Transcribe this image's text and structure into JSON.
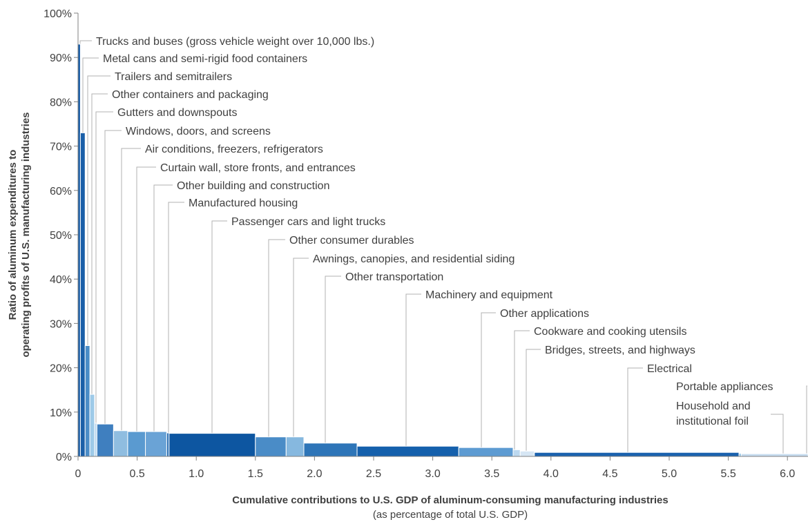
{
  "chart_data": {
    "type": "bar",
    "subtype": "variable-width (Marimekko-style) bar chart",
    "xlabel": "Cumulative contributions to U.S. GDP of aluminum-consuming manufacturing industries",
    "xlabel_sub": "(as percentage of total U.S. GDP)",
    "ylabel_line1": "Ratio of aluminum expenditures to",
    "ylabel_line2": "operating profits of U.S. manufacturing industries",
    "xlim": [
      0,
      6.1
    ],
    "ylim": [
      0,
      100
    ],
    "x_ticks": [
      "0",
      "0.5",
      "1.0",
      "1.5",
      "2.0",
      "2.5",
      "3.0",
      "3.5",
      "4.0",
      "4.5",
      "5.0",
      "5.5",
      "6.0"
    ],
    "y_ticks": [
      "0%",
      "10%",
      "20%",
      "30%",
      "40%",
      "50%",
      "60%",
      "70%",
      "80%",
      "90%",
      "100%"
    ],
    "grid": false,
    "legend": "none (direct labels)",
    "bars": [
      {
        "label": "Trucks and buses (gross vehicle weight over 10,000 lbs.)",
        "x_start": 0.0,
        "x_end": 0.02,
        "value": 93,
        "color": "#1a5fa8"
      },
      {
        "label": "Metal cans and semi-rigid food containers",
        "x_start": 0.02,
        "x_end": 0.06,
        "value": 73,
        "color": "#1a5fa8"
      },
      {
        "label": "Trailers and semitrailers",
        "x_start": 0.06,
        "x_end": 0.1,
        "value": 25,
        "color": "#4a8cc7"
      },
      {
        "label": "Other containers and packaging",
        "x_start": 0.1,
        "x_end": 0.14,
        "value": 14,
        "color": "#9ecae8"
      },
      {
        "label": "Gutters and downspouts",
        "x_start": 0.14,
        "x_end": 0.16,
        "value": 7.5,
        "color": "#bcd8ef"
      },
      {
        "label": "Windows, doors, and screens",
        "x_start": 0.16,
        "x_end": 0.3,
        "value": 7.3,
        "color": "#3f7fbf"
      },
      {
        "label": "Air conditions, freezers, refrigerators",
        "x_start": 0.3,
        "x_end": 0.42,
        "value": 5.8,
        "color": "#8fbde0"
      },
      {
        "label": "Curtain wall, store fronts, and entrances",
        "x_start": 0.42,
        "x_end": 0.57,
        "value": 5.6,
        "color": "#5a9ad0"
      },
      {
        "label": "Other building and construction",
        "x_start": 0.57,
        "x_end": 0.75,
        "value": 5.6,
        "color": "#6aa3d6"
      },
      {
        "label": "Manufactured housing",
        "x_start": 0.75,
        "x_end": 0.77,
        "value": 5.3,
        "color": "#2f72b6"
      },
      {
        "label": "Passenger cars and light trucks",
        "x_start": 0.77,
        "x_end": 1.5,
        "value": 5.2,
        "color": "#0d56a1"
      },
      {
        "label": "Other consumer durables",
        "x_start": 1.5,
        "x_end": 1.76,
        "value": 4.4,
        "color": "#4a8cc7"
      },
      {
        "label": "Awnings, canopies, and residential siding",
        "x_start": 1.76,
        "x_end": 1.91,
        "value": 4.4,
        "color": "#86b8df"
      },
      {
        "label": "Other transportation",
        "x_start": 1.91,
        "x_end": 2.36,
        "value": 3.0,
        "color": "#2e75b8"
      },
      {
        "label": "Machinery and equipment",
        "x_start": 2.36,
        "x_end": 3.22,
        "value": 2.3,
        "color": "#1560ac"
      },
      {
        "label": "Other applications",
        "x_start": 3.22,
        "x_end": 3.68,
        "value": 2.0,
        "color": "#5d9bd2"
      },
      {
        "label": "Cookware and cooking utensils",
        "x_start": 3.68,
        "x_end": 3.74,
        "value": 1.5,
        "color": "#bcd8ef"
      },
      {
        "label": "Bridges, streets, and highways",
        "x_start": 3.74,
        "x_end": 3.86,
        "value": 1.2,
        "color": "#d6e6f4"
      },
      {
        "label": "Electrical",
        "x_start": 3.86,
        "x_end": 5.59,
        "value": 0.9,
        "color": "#1a62ae"
      },
      {
        "label": "Portable appliances",
        "x_start": 5.59,
        "x_end": 5.61,
        "value": 0.7,
        "color": "#9ecae8"
      },
      {
        "label": "Household and institutional foil",
        "label_lines": [
          "Household and",
          "institutional foil"
        ],
        "x_start": 5.61,
        "x_end": 6.2,
        "value": 0.6,
        "color": "#c6dcef"
      }
    ]
  },
  "callouts": [
    {
      "label_index": 0,
      "label_y": 59,
      "text_x": 139,
      "line_x": 116,
      "line_top": 59,
      "anchor_x": 116,
      "leader_top": 59
    },
    {
      "label_index": 1,
      "label_y": 84,
      "text_x": 149,
      "line_x": 120,
      "anchor_x": 120
    },
    {
      "label_index": 2,
      "label_y": 110,
      "text_x": 166,
      "line_x": 127,
      "anchor_x": 127
    },
    {
      "label_index": 3,
      "label_y": 136,
      "text_x": 162,
      "line_x": 133,
      "anchor_x": 133
    },
    {
      "label_index": 4,
      "label_y": 162,
      "text_x": 170,
      "line_x": 139,
      "anchor_x": 139
    },
    {
      "label_index": 5,
      "label_y": 189,
      "text_x": 182,
      "line_x": 152,
      "anchor_x": 152
    },
    {
      "label_index": 6,
      "label_y": 215,
      "text_x": 210,
      "line_x": 176,
      "anchor_x": 176
    },
    {
      "label_index": 7,
      "label_y": 242,
      "text_x": 232,
      "line_x": 198,
      "anchor_x": 198
    },
    {
      "label_index": 8,
      "label_y": 268,
      "text_x": 256,
      "line_x": 223,
      "anchor_x": 223
    },
    {
      "label_index": 9,
      "label_y": 293,
      "text_x": 273,
      "line_x": 244,
      "anchor_x": 244
    },
    {
      "label_index": 10,
      "label_y": 320,
      "text_x": 335,
      "line_x": 307,
      "anchor_x": 307
    },
    {
      "label_index": 11,
      "label_y": 347,
      "text_x": 419,
      "line_x": 389,
      "anchor_x": 389
    },
    {
      "label_index": 12,
      "label_y": 374,
      "text_x": 453,
      "line_x": 425,
      "anchor_x": 425
    },
    {
      "label_index": 13,
      "label_y": 400,
      "text_x": 500,
      "line_x": 471,
      "anchor_x": 471
    },
    {
      "label_index": 14,
      "label_y": 426,
      "text_x": 616,
      "line_x": 588,
      "anchor_x": 588
    },
    {
      "label_index": 15,
      "label_y": 453,
      "text_x": 724,
      "line_x": 697,
      "anchor_x": 697
    },
    {
      "label_index": 16,
      "label_y": 479,
      "text_x": 773,
      "line_x": 745,
      "anchor_x": 745
    },
    {
      "label_index": 17,
      "label_y": 506,
      "text_x": 789,
      "line_x": 762,
      "anchor_x": 762
    },
    {
      "label_index": 18,
      "label_y": 533,
      "text_x": 937,
      "line_x": 909,
      "anchor_x": 909
    },
    {
      "label_index": 19,
      "label_y": 559,
      "text_x": 979,
      "line_x": 1168,
      "anchor_x": 1168,
      "right_side": true
    },
    {
      "label_index": 20,
      "label_y": 600,
      "text_x": 979,
      "line_x": 1134,
      "anchor_x": 1134,
      "right_side": true
    }
  ]
}
